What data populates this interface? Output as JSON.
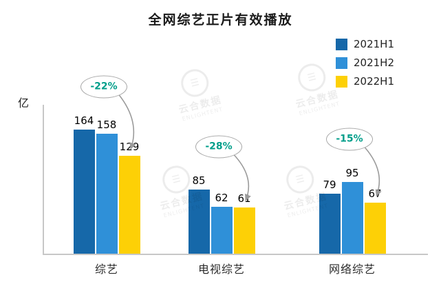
{
  "title": "全网综艺正片有效播放",
  "unit_label": "亿",
  "watermark": {
    "name": "云合数据",
    "sub": "ENLIGHTENT",
    "icon": "☰"
  },
  "colors": {
    "series": {
      "2021H1": "#1668a9",
      "2021H2": "#2f90d8",
      "2022H1": "#fdd006"
    },
    "annotation_text": "#009e8a",
    "arrow": "#9b9b9b",
    "axis": "#c7c7c7"
  },
  "chart_data": {
    "type": "bar",
    "categories": [
      "综艺",
      "电视综艺",
      "网络综艺"
    ],
    "series": [
      {
        "name": "2021H1",
        "values": [
          164,
          85,
          79
        ]
      },
      {
        "name": "2021H2",
        "values": [
          158,
          62,
          95
        ]
      },
      {
        "name": "2022H1",
        "values": [
          129,
          61,
          67
        ]
      }
    ],
    "annotations": [
      {
        "category": "综艺",
        "label": "-22%"
      },
      {
        "category": "电视综艺",
        "label": "-28%"
      },
      {
        "category": "网络综艺",
        "label": "-15%"
      }
    ],
    "title": "全网综艺正片有效播放",
    "xlabel": "",
    "ylabel": "亿",
    "ylim": [
      0,
      190
    ],
    "grid": false,
    "legend_position": "top-right"
  }
}
